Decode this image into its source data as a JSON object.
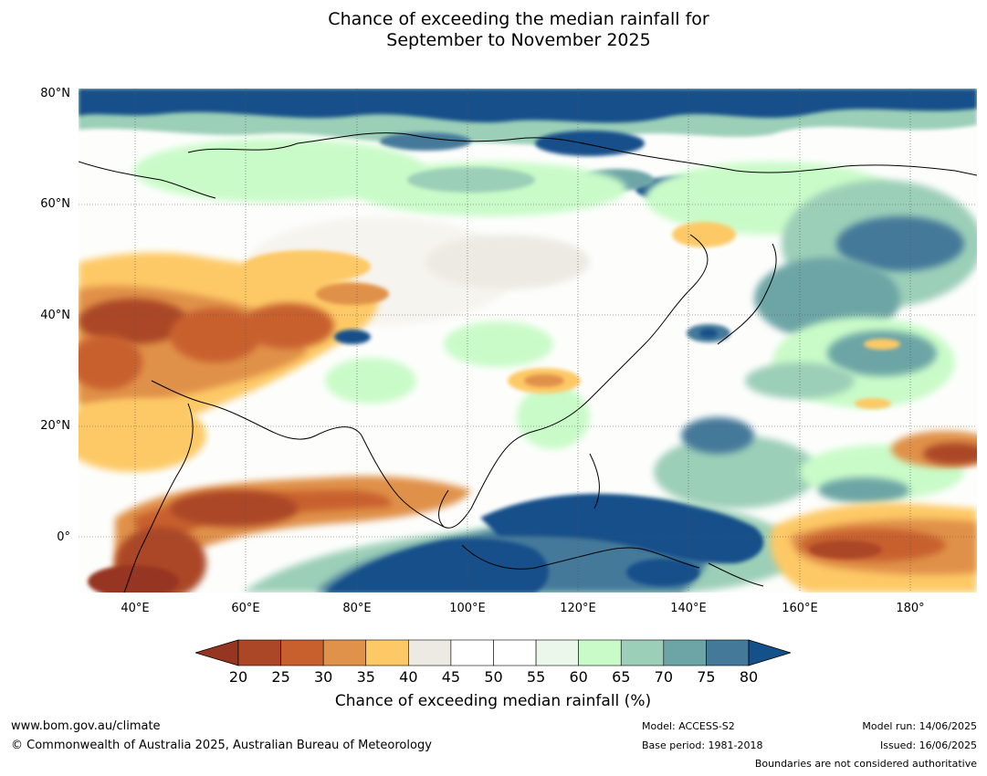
{
  "title": {
    "line1": "Chance of exceeding the median rainfall for",
    "line2": "September to November 2025"
  },
  "axes": {
    "lat_labels": [
      "80°N",
      "60°N",
      "40°N",
      "20°N",
      "0°"
    ],
    "lon_labels": [
      "40°E",
      "60°E",
      "80°E",
      "100°E",
      "120°E",
      "140°E",
      "160°E",
      "180°"
    ],
    "lon_range": [
      30,
      192
    ],
    "lat_range": [
      -10,
      80
    ],
    "gridlines": true
  },
  "colorbar": {
    "ticks": [
      "20",
      "25",
      "30",
      "35",
      "40",
      "45",
      "50",
      "55",
      "60",
      "65",
      "70",
      "75",
      "80"
    ],
    "colors": [
      "#ab4627",
      "#c8602d",
      "#e0914a",
      "#fdc966",
      "#edeae3",
      "#ffffff",
      "#ffffff",
      "#eaf7ea",
      "#c9fbc8",
      "#9ccfb8",
      "#6da5a6",
      "#44799a"
    ],
    "under_color": "#963622",
    "over_color": "#14508a",
    "label": "Chance of exceeding median rainfall (%)"
  },
  "footer": {
    "url": "www.bom.gov.au/climate",
    "copyright": "© Commonwealth of Australia 2025, Australian Bureau of Meteorology",
    "model": "Model: ACCESS-S2",
    "base_period": "Base period: 1981-2018",
    "model_run": "Model run: 14/06/2025",
    "issued": "Issued: 16/06/2025",
    "disclaimer": "Boundaries are not considered authoritative"
  }
}
